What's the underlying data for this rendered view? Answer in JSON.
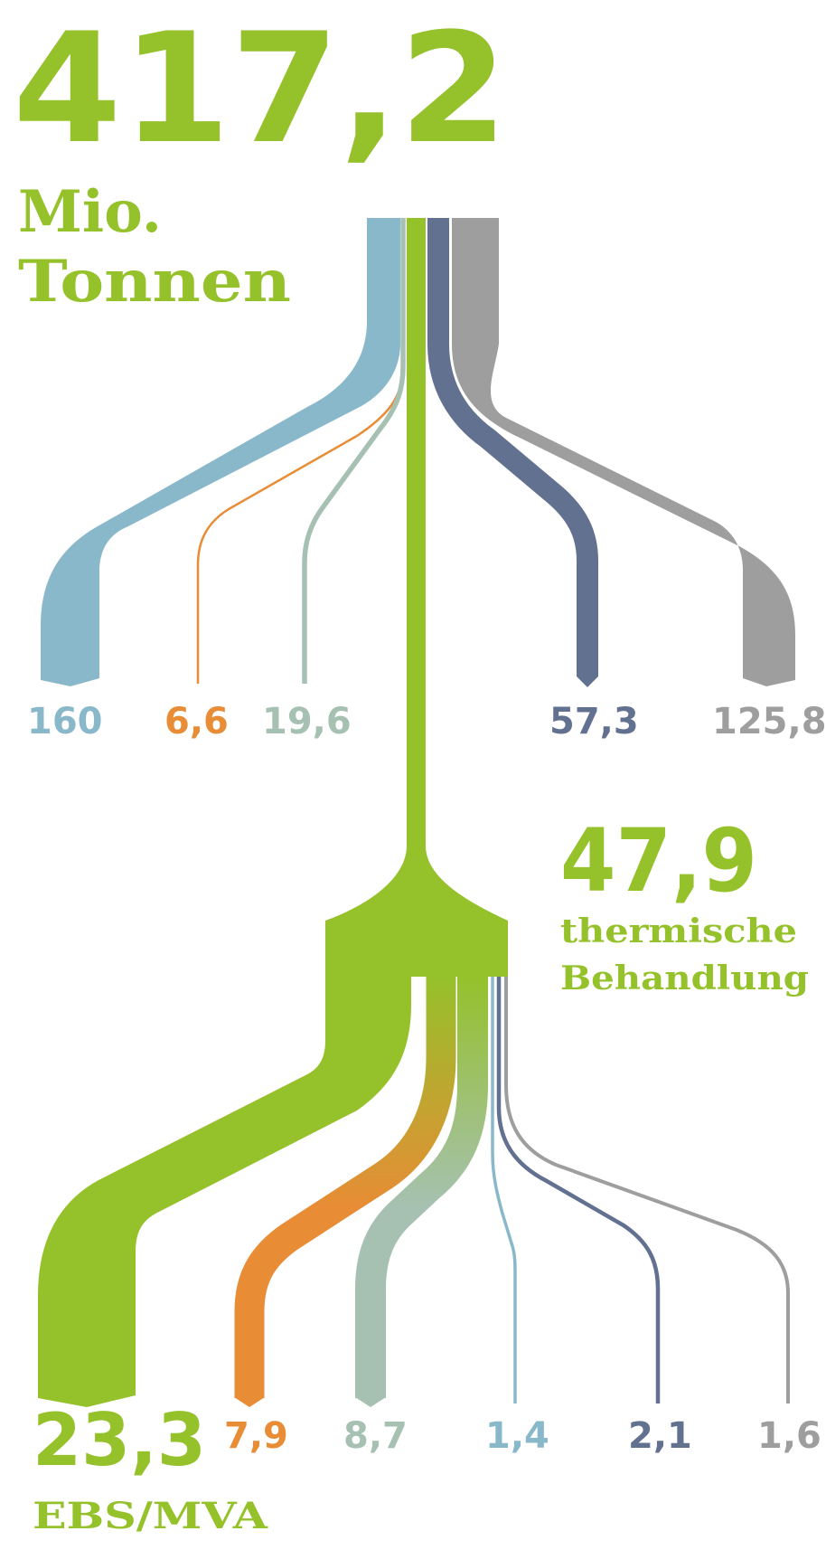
{
  "colors": {
    "green": "#95c12b",
    "lightblue": "#88b8ca",
    "orange": "#e88c35",
    "sage": "#a6c1b2",
    "navy": "#637191",
    "gray": "#9e9e9e"
  },
  "header": {
    "total": "417,2",
    "unit_line1": "Mio.",
    "unit_line2": "Tonnen"
  },
  "thermal": {
    "value": "47,9",
    "label_line1": "thermische",
    "label_line2": "Behandlung"
  },
  "ebs": {
    "value": "23,3",
    "label": "EBS/MVA"
  },
  "chart_data": {
    "type": "sankey",
    "total": 417.2,
    "unit": "Mio. Tonnen",
    "level1_outputs": [
      {
        "label": "160",
        "value": 160,
        "color": "lightblue"
      },
      {
        "label": "6,6",
        "value": 6.6,
        "color": "orange"
      },
      {
        "label": "19,6",
        "value": 19.6,
        "color": "sage"
      },
      {
        "label": "47,9",
        "value": 47.9,
        "color": "green",
        "name": "thermische Behandlung"
      },
      {
        "label": "57,3",
        "value": 57.3,
        "color": "navy"
      },
      {
        "label": "125,8",
        "value": 125.8,
        "color": "gray"
      }
    ],
    "level2_outputs": [
      {
        "label": "23,3",
        "value": 23.3,
        "color": "green",
        "name": "EBS/MVA"
      },
      {
        "label": "7,9",
        "value": 7.9,
        "color": "orange"
      },
      {
        "label": "8,7",
        "value": 8.7,
        "color": "sage"
      },
      {
        "label": "1,4",
        "value": 1.4,
        "color": "lightblue"
      },
      {
        "label": "2,1",
        "value": 2.1,
        "color": "navy"
      },
      {
        "label": "1,6",
        "value": 1.6,
        "color": "gray"
      }
    ]
  }
}
